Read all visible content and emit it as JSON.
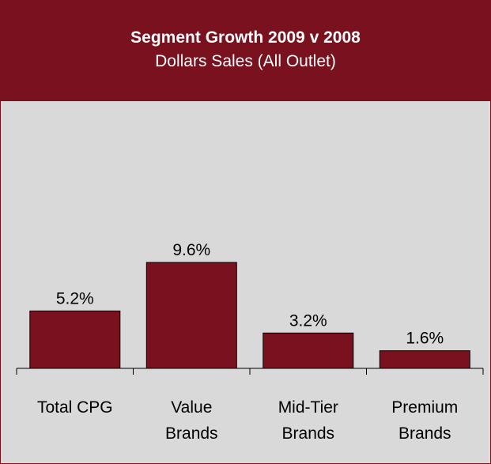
{
  "colors": {
    "bar": "#7a111e",
    "header_bg": "#7a111e",
    "plot_bg": "#d9d9d9",
    "axis": "#000000"
  },
  "chart_data": {
    "type": "bar",
    "title": "Segment Growth 2009 v 2008",
    "subtitle": "Dollars Sales (All Outlet)",
    "categories": [
      [
        "Total CPG"
      ],
      [
        "Value",
        "Brands"
      ],
      [
        "Mid-Tier",
        "Brands"
      ],
      [
        "Premium",
        "Brands"
      ]
    ],
    "values": [
      5.2,
      9.6,
      3.2,
      1.6
    ],
    "data_labels": [
      "5.2%",
      "9.6%",
      "3.2%",
      "1.6%"
    ],
    "unit": "%",
    "ylim": [
      0,
      9.6
    ],
    "grid": false,
    "legend": "none"
  }
}
